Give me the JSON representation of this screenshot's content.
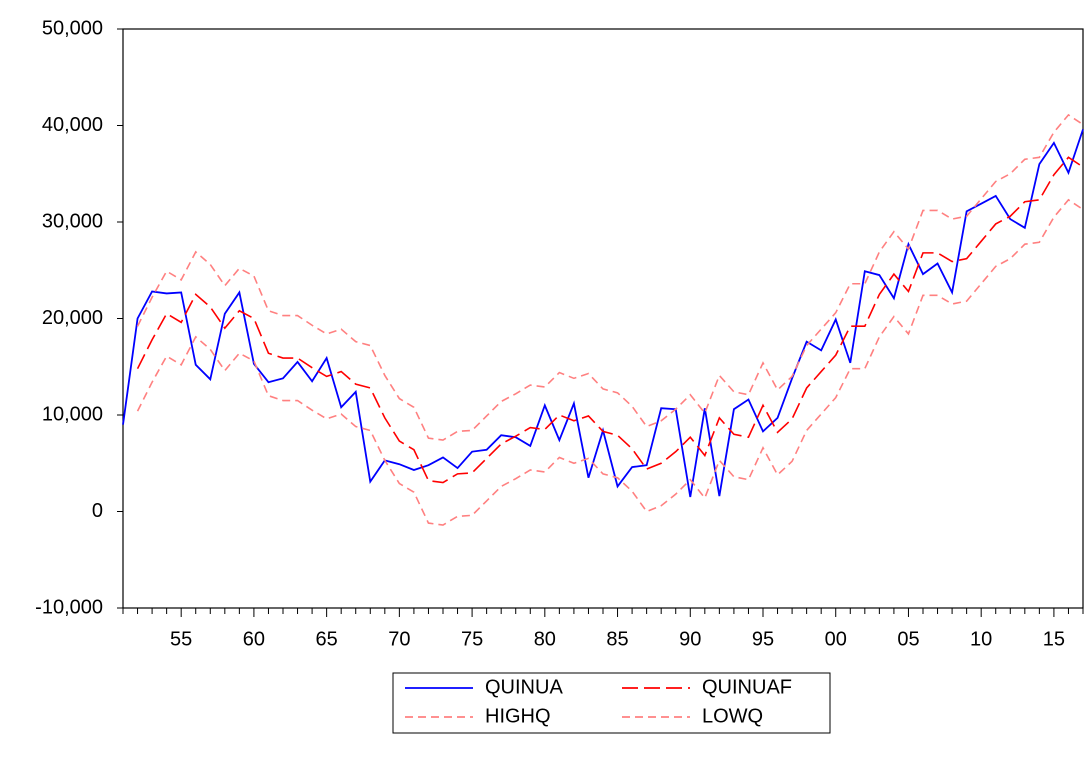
{
  "chart_data": {
    "type": "line",
    "categories": [
      null,
      null,
      null,
      null,
      "55",
      null,
      null,
      null,
      null,
      "60",
      null,
      null,
      null,
      null,
      "65",
      null,
      null,
      null,
      null,
      "70",
      null,
      null,
      null,
      null,
      "75",
      null,
      null,
      null,
      null,
      "80",
      null,
      null,
      null,
      null,
      "85",
      null,
      null,
      null,
      null,
      "90",
      null,
      null,
      null,
      null,
      "95",
      null,
      null,
      null,
      null,
      "00",
      null,
      null,
      null,
      null,
      "05",
      null,
      null,
      null,
      null,
      "10",
      null,
      null,
      null,
      null,
      "15",
      null,
      null
    ],
    "series": [
      {
        "name": "QUINUA",
        "color": "#0000ff",
        "style": "solid",
        "values": [
          9000,
          20000,
          22800,
          22600,
          22700,
          15200,
          13700,
          20500,
          22700,
          15300,
          13400,
          13800,
          15500,
          13500,
          15900,
          10800,
          12400,
          3100,
          5300,
          4900,
          4300,
          4800,
          5600,
          4500,
          6200,
          6400,
          7900,
          7700,
          6800,
          11000,
          7400,
          11200,
          3500,
          8400,
          2600,
          4600,
          4800,
          10700,
          10600,
          1500,
          10700,
          1600,
          10600,
          11600,
          8300,
          9700,
          13800,
          17600,
          16700,
          19900,
          15400,
          24900,
          24500,
          22100,
          27700,
          24600,
          25700,
          22700,
          31100,
          31900,
          32700,
          30300,
          29400,
          36000,
          38200,
          35100,
          39600
        ]
      },
      {
        "name": "QUINUAF",
        "color": "#ff0000",
        "style": "longdash",
        "values": [
          null,
          14800,
          17800,
          20500,
          19600,
          22500,
          21200,
          19000,
          20800,
          20000,
          16400,
          15900,
          15900,
          14900,
          14000,
          14500,
          13200,
          12800,
          9700,
          7300,
          6400,
          3200,
          3000,
          3900,
          4000,
          5500,
          7000,
          7800,
          8700,
          8500,
          10000,
          9400,
          9900,
          8300,
          7900,
          6500,
          4400,
          5000,
          6200,
          7700,
          5800,
          9700,
          8000,
          7700,
          11000,
          8200,
          9600,
          12800,
          14500,
          16200,
          19200,
          19200,
          22500,
          24600,
          22800,
          26800,
          26800,
          25900,
          26200,
          28000,
          29800,
          30600,
          32100,
          32300,
          34900,
          36700,
          35700
        ]
      },
      {
        "name": "HIGHQ",
        "color": "#ff8080",
        "style": "dashed",
        "values": [
          null,
          19200,
          22200,
          24900,
          24000,
          26900,
          25600,
          23400,
          25200,
          24400,
          20800,
          20300,
          20300,
          19300,
          18400,
          18900,
          17600,
          17200,
          14100,
          11700,
          10800,
          7600,
          7400,
          8300,
          8400,
          9900,
          11400,
          12200,
          13100,
          12900,
          14400,
          13800,
          14300,
          12700,
          12300,
          10900,
          8800,
          9400,
          10600,
          12100,
          10200,
          14100,
          12400,
          12100,
          15400,
          12600,
          14000,
          17200,
          18900,
          20600,
          23600,
          23600,
          26900,
          29000,
          27200,
          31200,
          31200,
          30300,
          30600,
          32400,
          34200,
          35000,
          36500,
          36700,
          39300,
          41100,
          40100
        ]
      },
      {
        "name": "LOWQ",
        "color": "#ff8080",
        "style": "dashed",
        "values": [
          null,
          10400,
          13400,
          16100,
          15200,
          18100,
          16800,
          14600,
          16400,
          15600,
          12000,
          11500,
          11500,
          10500,
          9600,
          10100,
          8800,
          8400,
          5300,
          2900,
          2000,
          -1200,
          -1400,
          -500,
          -400,
          1100,
          2600,
          3400,
          4300,
          4100,
          5600,
          5000,
          5500,
          3900,
          3500,
          2100,
          0,
          600,
          1800,
          3300,
          1400,
          5300,
          3600,
          3300,
          6600,
          3800,
          5200,
          8400,
          10100,
          11800,
          14800,
          14800,
          18100,
          20200,
          18400,
          22400,
          22400,
          21500,
          21800,
          23600,
          25400,
          26200,
          27700,
          27900,
          30500,
          32300,
          31300
        ]
      }
    ],
    "ylim": [
      -10000,
      50000
    ],
    "yticks": [
      {
        "value": -10000,
        "label": "-10,000"
      },
      0,
      {
        "value": 10000,
        "label": "10,000"
      },
      {
        "value": 20000,
        "label": "20,000"
      },
      {
        "value": 30000,
        "label": "30,000"
      },
      {
        "value": 40000,
        "label": "40,000"
      },
      {
        "value": 50000,
        "label": "50,000"
      }
    ],
    "grid": false,
    "legend": "bottom"
  }
}
